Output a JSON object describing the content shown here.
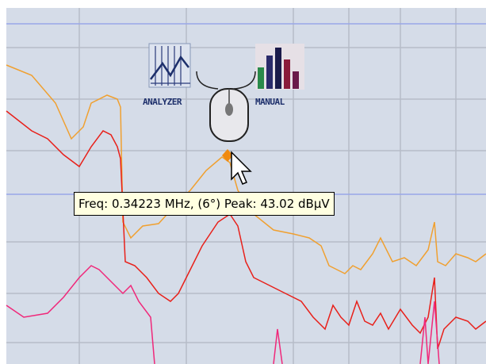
{
  "icons": {
    "analyzer": "ANALYZER",
    "manual": "MANUAL"
  },
  "tooltip": "Freq: 0.34223 MHz, (6°) Peak: 43.02 dBµV"
}
